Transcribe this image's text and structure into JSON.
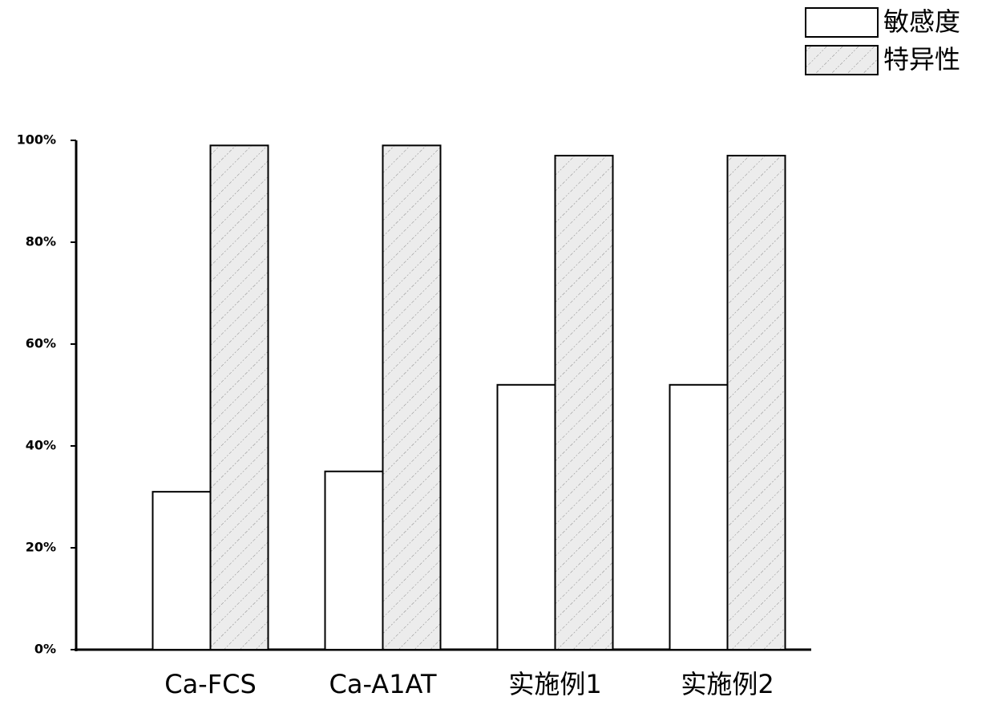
{
  "chart_data": {
    "type": "bar",
    "categories": [
      "Ca-FCS",
      "Ca-A1AT",
      "实施例1",
      "实施例2"
    ],
    "series": [
      {
        "name": "敏感度",
        "color": "#ffffff",
        "values": [
          31,
          35,
          52,
          52
        ]
      },
      {
        "name": "特异性",
        "color": "#ececec",
        "pattern": "hatch",
        "values": [
          99,
          99,
          97,
          97
        ]
      }
    ],
    "ylim": [
      0,
      100
    ],
    "yticks": [
      {
        "value": 0,
        "label": "0%"
      },
      {
        "value": 20,
        "label": "20%"
      },
      {
        "value": 40,
        "label": "40%"
      },
      {
        "value": 60,
        "label": "60%"
      },
      {
        "value": 80,
        "label": "80%"
      },
      {
        "value": 100,
        "label": "100%"
      }
    ],
    "legend": "upper right"
  }
}
